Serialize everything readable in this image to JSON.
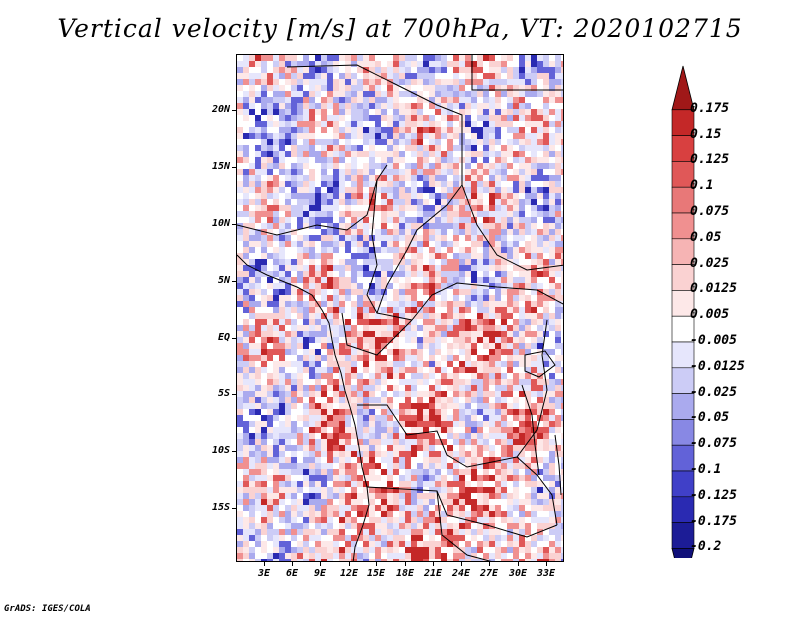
{
  "title": "Vertical velocity [m/s] at 700hPa, VT: 2020102715",
  "footer": "GrADS: IGES/COLA",
  "map": {
    "variable": "Vertical velocity",
    "units": "m/s",
    "level": "700hPa",
    "valid_time": "2020102715",
    "lat_labels": [
      "20N",
      "15N",
      "10N",
      "5N",
      "EQ",
      "5S",
      "10S",
      "15S"
    ],
    "lon_labels": [
      "3E",
      "6E",
      "9E",
      "12E",
      "15E",
      "18E",
      "21E",
      "24E",
      "27E",
      "30E",
      "33E"
    ]
  },
  "colorbar": {
    "labels": [
      "0.175",
      "0.15",
      "0.125",
      "0.1",
      "0.075",
      "0.05",
      "0.025",
      "0.0125",
      "0.005",
      "-0.005",
      "-0.0125",
      "-0.025",
      "-0.05",
      "-0.075",
      "-0.1",
      "-0.125",
      "-0.175",
      "-0.2"
    ],
    "colors": [
      "#a01818",
      "#c42828",
      "#d84040",
      "#e05858",
      "#e87878",
      "#f09090",
      "#f6b4b4",
      "#fad2d2",
      "#fde8e8",
      "#ffffff",
      "#e6e6fc",
      "#ccccf6",
      "#aaaaee",
      "#8888e4",
      "#6262d8",
      "#4040c8",
      "#2a2ab2",
      "#1c1c96",
      "#10107a"
    ]
  }
}
